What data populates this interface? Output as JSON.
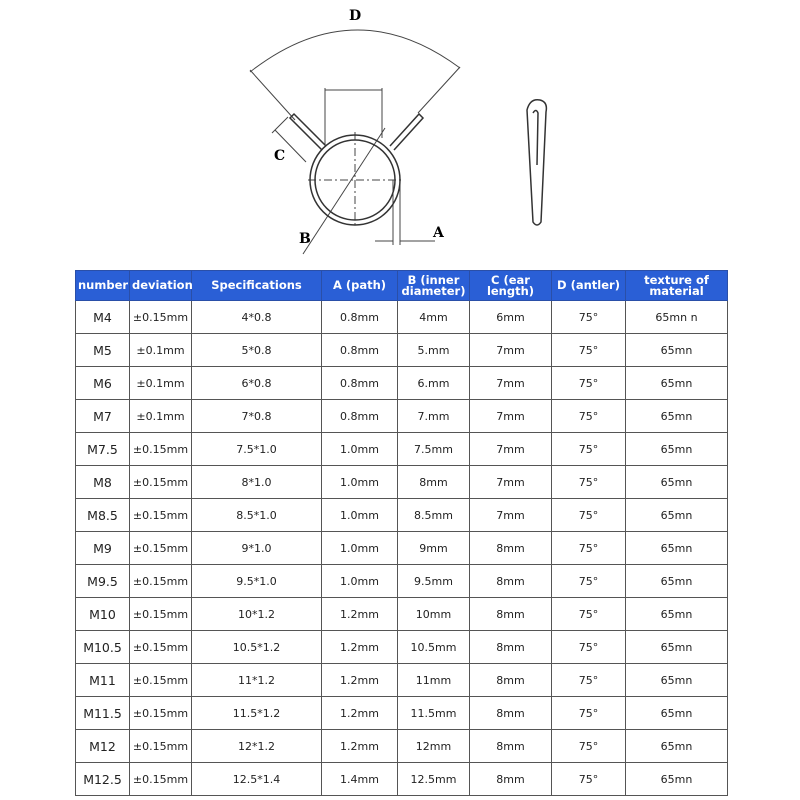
{
  "diagram": {
    "labels": {
      "d": "D",
      "c": "C",
      "b": "B",
      "a": "A"
    }
  },
  "table": {
    "headers": [
      "number",
      "deviation",
      "Specifications",
      "A (path)",
      "B (inner diameter)",
      "C (ear length)",
      "D (antler)",
      "texture of material"
    ],
    "header_color": "#2a5fd6",
    "rows": [
      [
        "M4",
        "±0.15mm",
        "4*0.8",
        "0.8mm",
        "4mm",
        "6mm",
        "75°",
        "65mn n"
      ],
      [
        "M5",
        "±0.1mm",
        "5*0.8",
        "0.8mm",
        "5.mm",
        "7mm",
        "75°",
        "65mn"
      ],
      [
        "M6",
        "±0.1mm",
        "6*0.8",
        "0.8mm",
        "6.mm",
        "7mm",
        "75°",
        "65mn"
      ],
      [
        "M7",
        "±0.1mm",
        "7*0.8",
        "0.8mm",
        "7.mm",
        "7mm",
        "75°",
        "65mn"
      ],
      [
        "M7.5",
        "±0.15mm",
        "7.5*1.0",
        "1.0mm",
        "7.5mm",
        "7mm",
        "75°",
        "65mn"
      ],
      [
        "M8",
        "±0.15mm",
        "8*1.0",
        "1.0mm",
        "8mm",
        "7mm",
        "75°",
        "65mn"
      ],
      [
        "M8.5",
        "±0.15mm",
        "8.5*1.0",
        "1.0mm",
        "8.5mm",
        "7mm",
        "75°",
        "65mn"
      ],
      [
        "M9",
        "±0.15mm",
        "9*1.0",
        "1.0mm",
        "9mm",
        "8mm",
        "75°",
        "65mn"
      ],
      [
        "M9.5",
        "±0.15mm",
        "9.5*1.0",
        "1.0mm",
        "9.5mm",
        "8mm",
        "75°",
        "65mn"
      ],
      [
        "M10",
        "±0.15mm",
        "10*1.2",
        "1.2mm",
        "10mm",
        "8mm",
        "75°",
        "65mn"
      ],
      [
        "M10.5",
        "±0.15mm",
        "10.5*1.2",
        "1.2mm",
        "10.5mm",
        "8mm",
        "75°",
        "65mn"
      ],
      [
        "M11",
        "±0.15mm",
        "11*1.2",
        "1.2mm",
        "11mm",
        "8mm",
        "75°",
        "65mn"
      ],
      [
        "M11.5",
        "±0.15mm",
        "11.5*1.2",
        "1.2mm",
        "11.5mm",
        "8mm",
        "75°",
        "65mn"
      ],
      [
        "M12",
        "±0.15mm",
        "12*1.2",
        "1.2mm",
        "12mm",
        "8mm",
        "75°",
        "65mn"
      ],
      [
        "M12.5",
        "±0.15mm",
        "12.5*1.4",
        "1.4mm",
        "12.5mm",
        "8mm",
        "75°",
        "65mn"
      ]
    ]
  }
}
